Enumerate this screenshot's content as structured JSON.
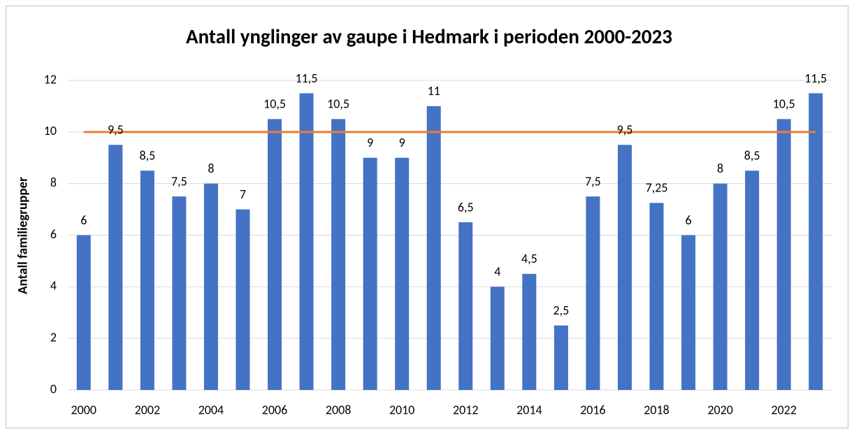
{
  "chart_data": {
    "type": "bar",
    "title": "Antall ynglinger av gaupe i Hedmark i perioden 2000-2023",
    "ylabel": "Antall familiegrupper",
    "categories": [
      "2000",
      null,
      "2002",
      null,
      "2004",
      null,
      "2006",
      null,
      "2008",
      null,
      "2010",
      null,
      "2012",
      null,
      "2014",
      null,
      "2016",
      null,
      "2018",
      null,
      "2020",
      null,
      "2022",
      null
    ],
    "values": [
      6,
      9.5,
      8.5,
      7.5,
      8,
      7,
      10.5,
      11.5,
      10.5,
      9,
      9,
      11,
      6.5,
      4,
      4.5,
      2.5,
      7.5,
      9.5,
      7.25,
      6,
      8,
      8.5,
      10.5,
      11.5
    ],
    "value_labels": [
      "6",
      "9,5",
      "8,5",
      "7,5",
      "8",
      "7",
      "10,5",
      "11,5",
      "10,5",
      "9",
      "9",
      "11",
      "6,5",
      "4",
      "4,5",
      "2,5",
      "7,5",
      "9,5",
      "7,25",
      "6",
      "8",
      "8,5",
      "10,5",
      "11,5"
    ],
    "color": "#4472c4",
    "line": {
      "color": "#ed7d31",
      "values": [
        10,
        10,
        10,
        10,
        10,
        10,
        10,
        10,
        10,
        10,
        10,
        10,
        10,
        10,
        10,
        10,
        10,
        10,
        10,
        10,
        10,
        10,
        10,
        10
      ]
    },
    "ylim": [
      0,
      12
    ],
    "yticks": [
      0,
      2,
      4,
      6,
      8,
      10,
      12
    ],
    "grid": true
  }
}
